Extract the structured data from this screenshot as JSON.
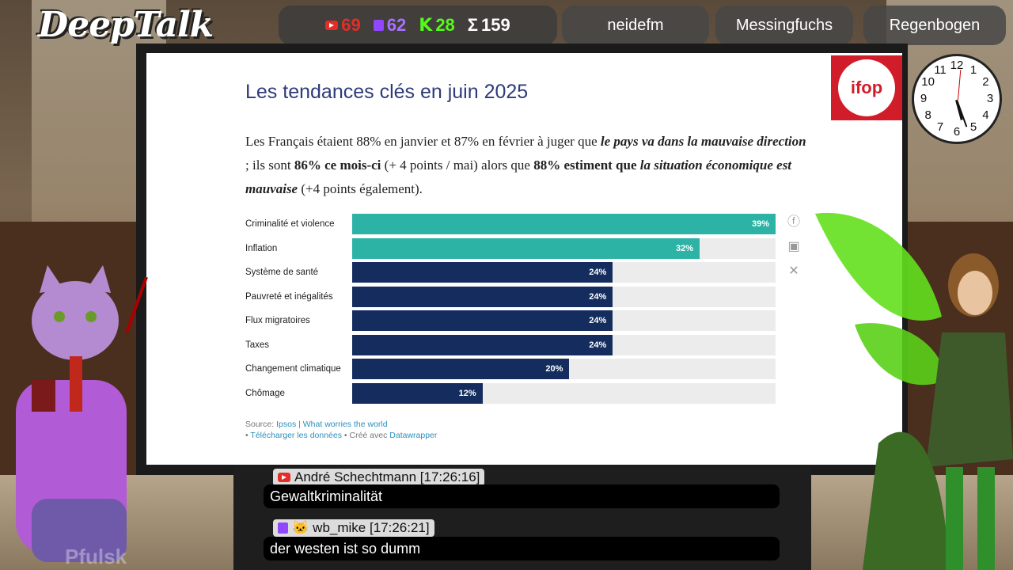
{
  "overlay": {
    "logo": "DeepTalk",
    "stats": {
      "youtube": "69",
      "twitch": "62",
      "kick": "28",
      "total": "159",
      "kick_letter": "K",
      "sigma": "Σ"
    },
    "pills": [
      "neidefm",
      "Messingfuchs",
      "Regenbogen"
    ],
    "watermark": "Pfulsk"
  },
  "slide": {
    "title": "Les tendances clés en juin 2025",
    "text": {
      "p1": "Les Français étaient 88% en janvier et 87% en février à juger que ",
      "b1": "le pays va dans la mauvaise direction",
      "p2": " ; ils sont ",
      "b2": "86% ce mois-ci",
      "p3": " (+ 4 points / mai) alors que ",
      "b3": "88% estiment que ",
      "b4": "la situation économique est mauvaise",
      "p4": " (+4 points également)."
    },
    "brand": "ifop",
    "source": {
      "prefix": "Source: ",
      "link": "Ipsos | What worries the world",
      "download": "Télécharger les données",
      "made_with": " • Créé avec ",
      "dw": "Datawrapper",
      "bullet": "• "
    }
  },
  "chart_data": {
    "type": "bar",
    "orientation": "horizontal",
    "categories": [
      "Criminalité et violence",
      "Inflation",
      "Système de santé",
      "Pauvreté et inégalités",
      "Flux migratoires",
      "Taxes",
      "Changement climatique",
      "Chômage"
    ],
    "values": [
      39,
      32,
      24,
      24,
      24,
      24,
      20,
      12
    ],
    "labels": [
      "39%",
      "32%",
      "24%",
      "24%",
      "24%",
      "24%",
      "20%",
      "12%"
    ],
    "xlim": [
      0,
      39
    ],
    "colors": [
      "#2db3a6",
      "#2db3a6",
      "#142d5e",
      "#142d5e",
      "#142d5e",
      "#142d5e",
      "#142d5e",
      "#142d5e"
    ]
  },
  "chat": [
    {
      "platform": "youtube",
      "user": "André Schechtmann [17:26:16]",
      "message": "Gewaltkriminalität"
    },
    {
      "platform": "twitch",
      "user": "wb_mike [17:26:21]",
      "message": "der westen ist so dumm"
    }
  ],
  "clock": {
    "numbers": [
      "12",
      "1",
      "2",
      "3",
      "4",
      "5",
      "6",
      "7",
      "8",
      "9",
      "10",
      "11"
    ]
  }
}
